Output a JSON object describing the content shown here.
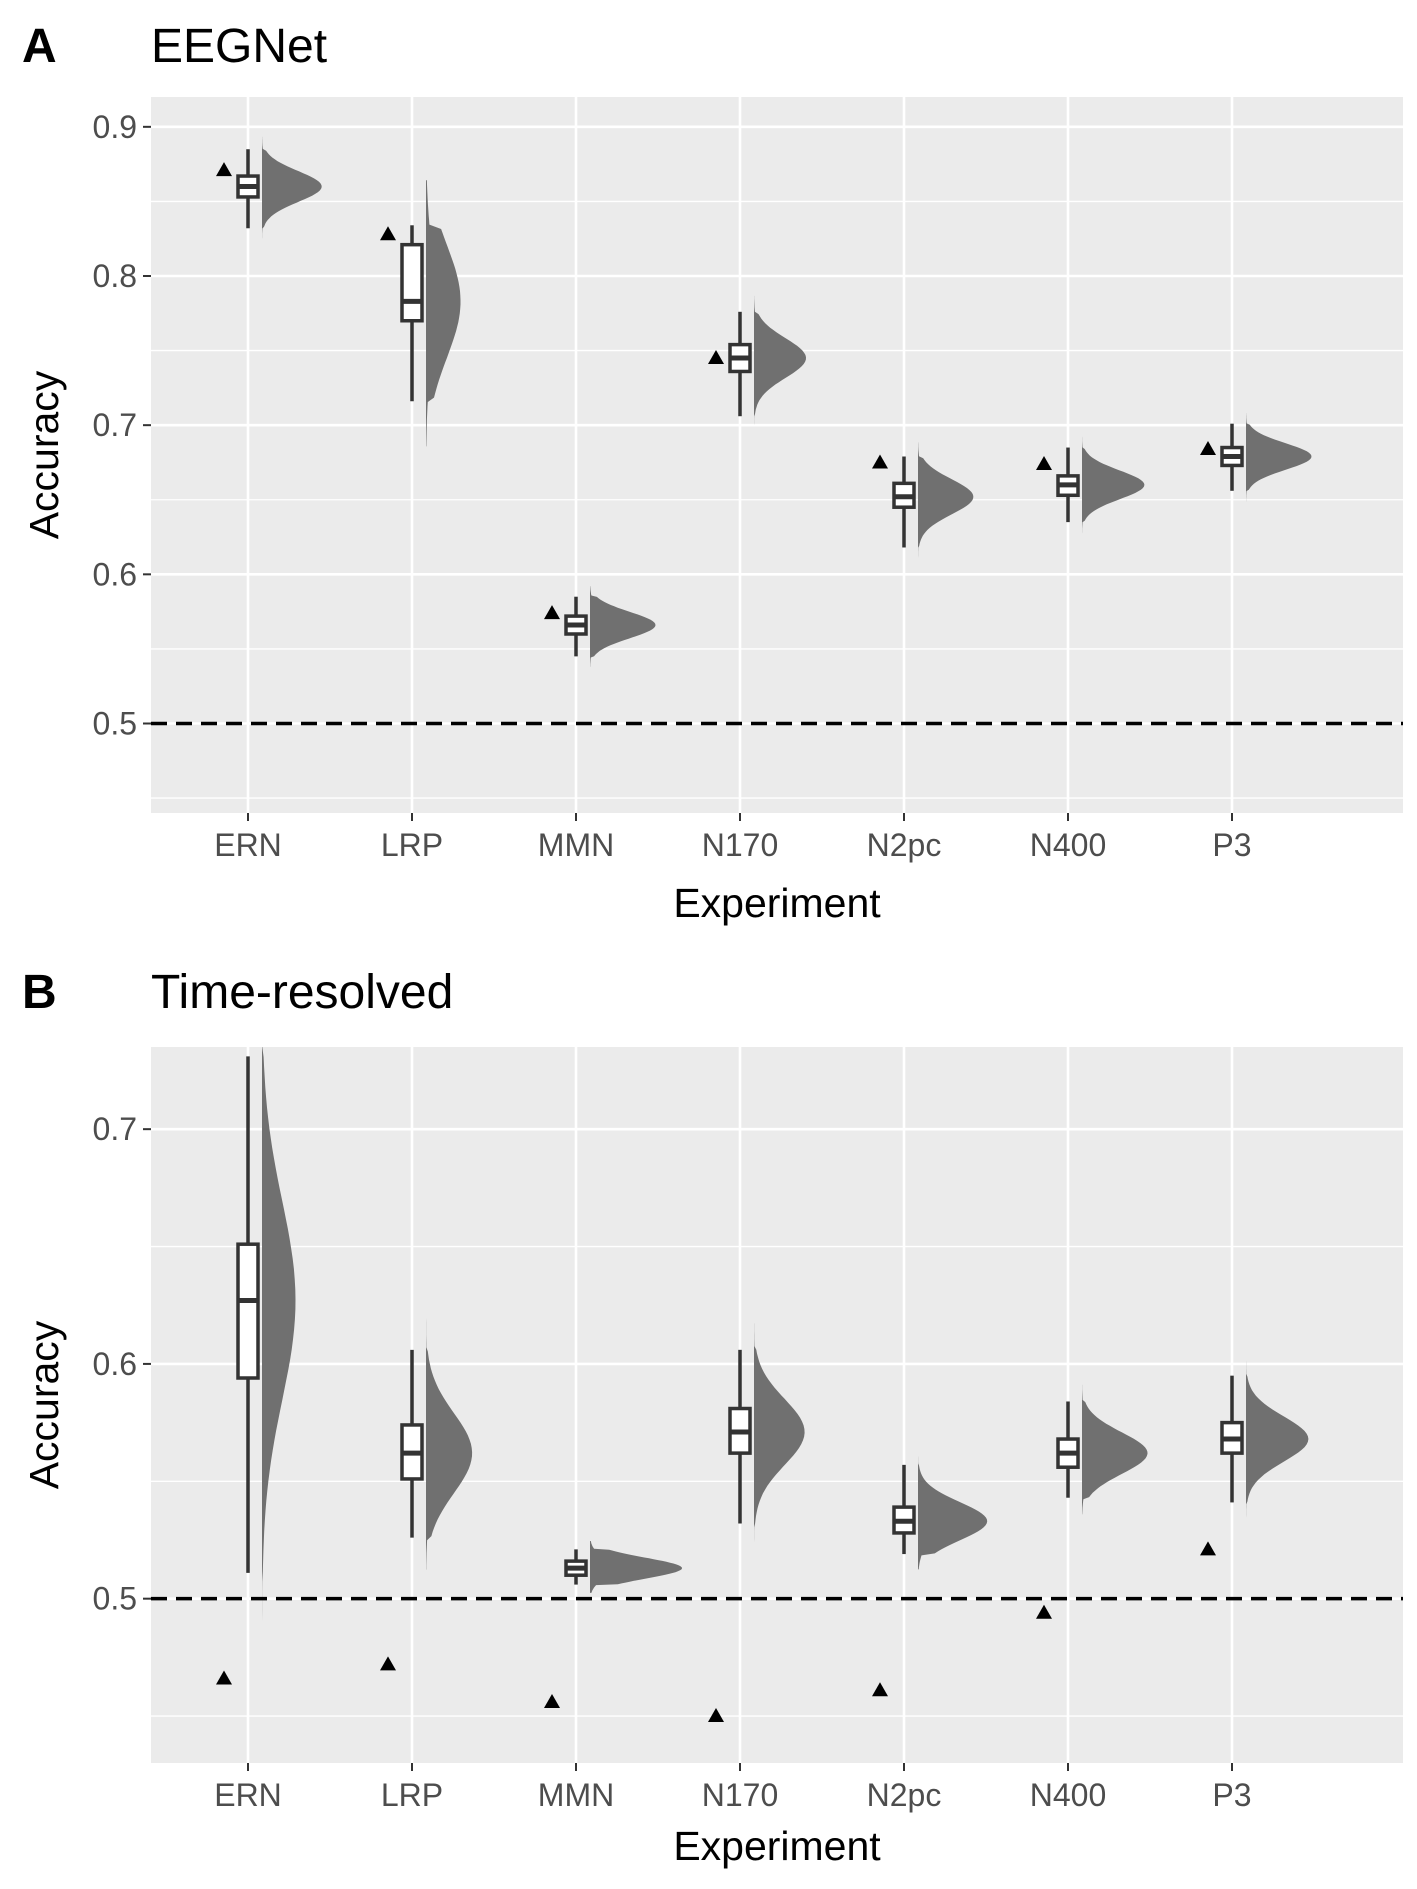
{
  "chart_data": [
    {
      "panel": "A",
      "title": "EEGNet",
      "type": "box",
      "xlabel": "Experiment",
      "ylabel": "Accuracy",
      "ylim": [
        0.44,
        0.92
      ],
      "yticks": [
        "0.5",
        "0.6",
        "0.7",
        "0.8",
        "0.9"
      ],
      "reference_line": 0.5,
      "categories": [
        "ERN",
        "LRP",
        "MMN",
        "N170",
        "N2pc",
        "N400",
        "P3"
      ],
      "boxes": [
        {
          "min": 0.832,
          "q1": 0.853,
          "median": 0.86,
          "q3": 0.867,
          "max": 0.885
        },
        {
          "min": 0.716,
          "q1": 0.77,
          "median": 0.783,
          "q3": 0.821,
          "max": 0.834
        },
        {
          "min": 0.545,
          "q1": 0.56,
          "median": 0.566,
          "q3": 0.572,
          "max": 0.585
        },
        {
          "min": 0.706,
          "q1": 0.736,
          "median": 0.745,
          "q3": 0.754,
          "max": 0.776
        },
        {
          "min": 0.618,
          "q1": 0.645,
          "median": 0.652,
          "q3": 0.661,
          "max": 0.679
        },
        {
          "min": 0.635,
          "q1": 0.653,
          "median": 0.66,
          "q3": 0.666,
          "max": 0.685
        },
        {
          "min": 0.656,
          "q1": 0.673,
          "median": 0.679,
          "q3": 0.685,
          "max": 0.701
        }
      ],
      "triangle_points": [
        0.871,
        0.828,
        0.574,
        0.745,
        0.675,
        0.674,
        0.684
      ]
    },
    {
      "panel": "B",
      "title": "Time-resolved",
      "type": "box",
      "xlabel": "Experiment",
      "ylabel": "Accuracy",
      "ylim": [
        0.43,
        0.735
      ],
      "yticks": [
        "0.5",
        "0.6",
        "0.7"
      ],
      "reference_line": 0.5,
      "categories": [
        "ERN",
        "LRP",
        "MMN",
        "N170",
        "N2pc",
        "N400",
        "P3"
      ],
      "boxes": [
        {
          "min": 0.511,
          "q1": 0.594,
          "median": 0.627,
          "q3": 0.651,
          "max": 0.731
        },
        {
          "min": 0.526,
          "q1": 0.551,
          "median": 0.562,
          "q3": 0.574,
          "max": 0.606
        },
        {
          "min": 0.506,
          "q1": 0.51,
          "median": 0.513,
          "q3": 0.516,
          "max": 0.521
        },
        {
          "min": 0.532,
          "q1": 0.562,
          "median": 0.571,
          "q3": 0.581,
          "max": 0.606
        },
        {
          "min": 0.519,
          "q1": 0.528,
          "median": 0.533,
          "q3": 0.539,
          "max": 0.557
        },
        {
          "min": 0.543,
          "q1": 0.556,
          "median": 0.562,
          "q3": 0.568,
          "max": 0.584
        },
        {
          "min": 0.541,
          "q1": 0.562,
          "median": 0.568,
          "q3": 0.575,
          "max": 0.595
        }
      ],
      "triangle_points": [
        0.466,
        0.472,
        0.456,
        0.45,
        0.461,
        0.494,
        0.521
      ]
    }
  ],
  "colors": {
    "panel_background": "#ebebeb",
    "grid": "#ffffff",
    "box_line": "#333333",
    "box_fill": "#ffffff",
    "density_fill": "#707070",
    "reference_line": "#000000",
    "triangle": "#000000"
  }
}
